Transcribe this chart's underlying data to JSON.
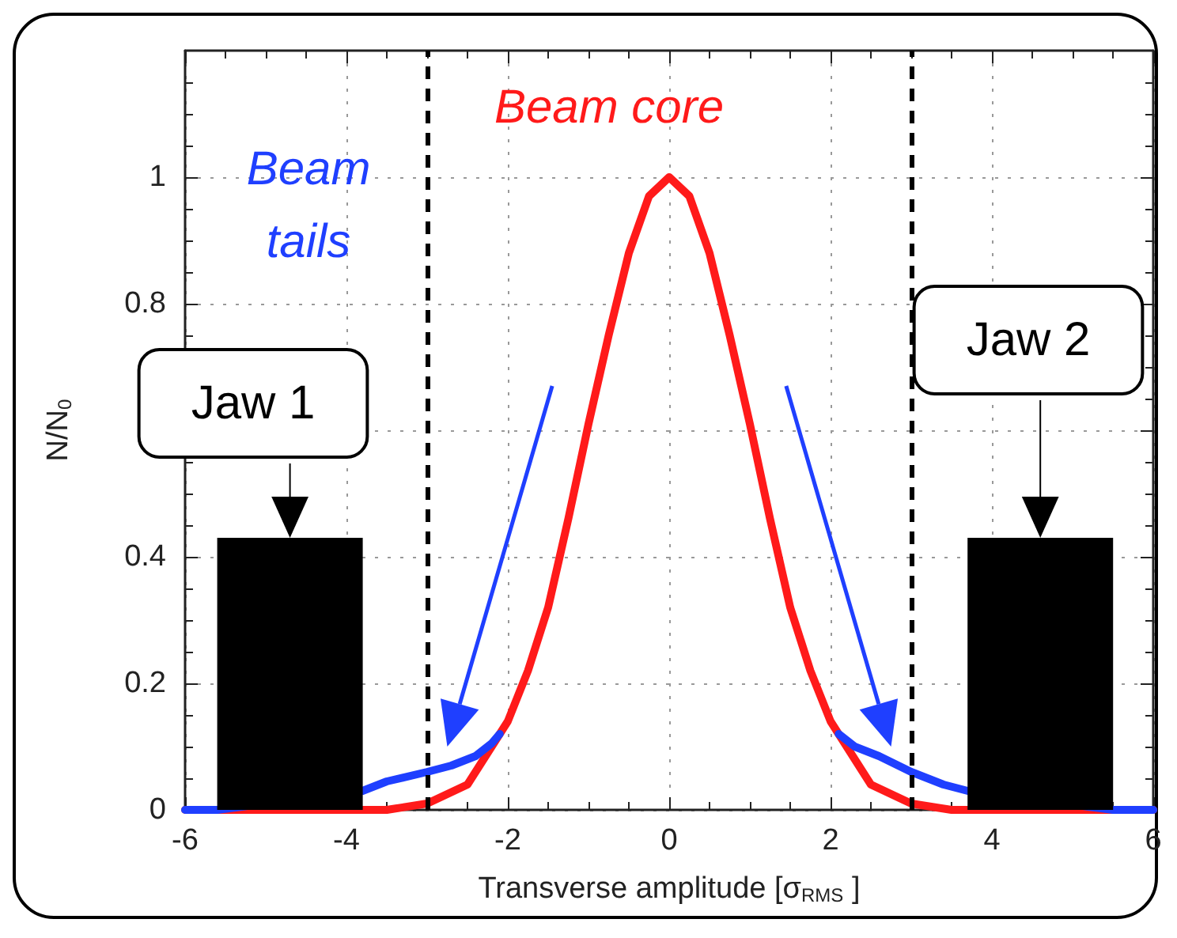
{
  "chart_data": {
    "type": "line",
    "xlabel": "Transverse amplitude [σ$_{RMS}$ ]",
    "ylabel": "N/N$_{0}$",
    "xlim": [
      -6,
      6
    ],
    "xticks": [
      -6,
      -4,
      -2,
      0,
      2,
      4,
      6
    ],
    "ylim": [
      0,
      1.2
    ],
    "yticks": [
      0,
      0.2,
      0.4,
      {
        "value": 0.6,
        "label": null
      },
      0.8,
      1
    ],
    "grid": true,
    "marker": "none",
    "line_style": "solid",
    "series": [
      {
        "color": "#ff1a1a",
        "x": [
          -6,
          -5,
          -4.5,
          -4,
          -3.5,
          -3,
          -2.5,
          -2,
          -1.75,
          -1.5,
          -1.25,
          -1,
          -0.75,
          -0.5,
          -0.25,
          0,
          0.25,
          0.5,
          0.75,
          1,
          1.25,
          1.5,
          1.75,
          2,
          2.5,
          3,
          3.5,
          4,
          4.5,
          5,
          6
        ],
        "values": [
          0,
          0,
          0,
          0,
          0,
          0.01,
          0.04,
          0.14,
          0.22,
          0.32,
          0.46,
          0.61,
          0.75,
          0.88,
          0.97,
          1,
          0.97,
          0.88,
          0.75,
          0.61,
          0.46,
          0.32,
          0.22,
          0.14,
          0.04,
          0.01,
          0,
          0,
          0,
          0,
          0
        ]
      },
      {
        "color": "#1f3fff",
        "x": [
          -6,
          -5.6,
          -3.8,
          -3.5,
          -3,
          -2.7,
          -2.4,
          -2.2,
          -2.1,
          null,
          2.1,
          2.3,
          2.6,
          3,
          3.4,
          3.7,
          5.5,
          6
        ],
        "values": [
          0,
          0,
          0.03,
          0.045,
          0.06,
          0.07,
          0.085,
          0.105,
          0.12,
          null,
          0.12,
          0.1,
          0.085,
          0.06,
          0.04,
          0.03,
          0,
          0
        ]
      },
      {
        "type": "bar",
        "color": "#000000",
        "x": [
          -4.7,
          4.6
        ],
        "values": [
          0.43,
          0.43
        ]
      }
    ],
    "ref_lines": [
      {
        "axis": "x",
        "value": -3,
        "color": "#000000",
        "line_style": "dashed"
      },
      {
        "axis": "x",
        "value": 3,
        "color": "#000000",
        "line_style": "dashed"
      }
    ],
    "annotations": [
      "Beam core",
      "Beam\ntails",
      "Jaw 1",
      "Jaw 2"
    ]
  }
}
